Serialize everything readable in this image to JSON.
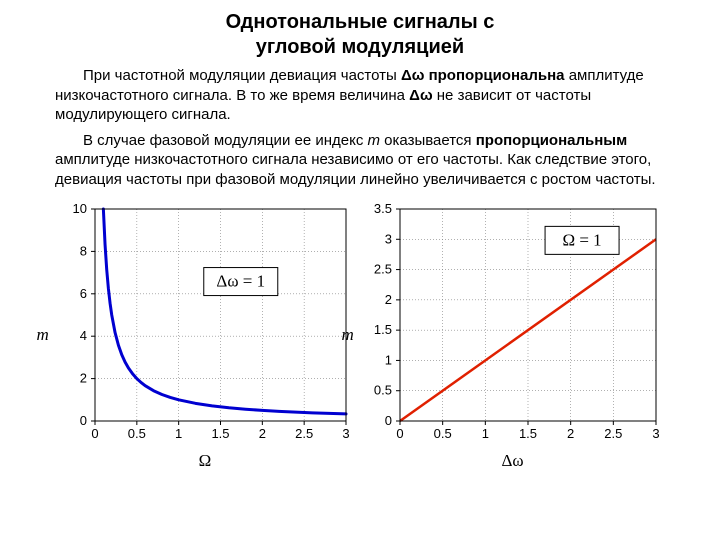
{
  "title_line1": "Однотональные сигналы с",
  "title_line2": "угловой модуляцией",
  "para1_parts": {
    "a": "При частотной модуляции девиация частоты ",
    "b": " пропорциональна",
    "c": " амплитуде низкочастотного сигнала. В то же время величина ",
    "d": " не зависит от частоты модулирующего сигнала."
  },
  "para2_parts": {
    "a": "В случае фазовой модуляции ее индекс ",
    "m": "m",
    "b": " оказывается ",
    "prop": "пропорциональным",
    "c": " амплитуде низкочастотного сигнала независимо от его частоты. Как следствие этого, девиация частоты при фазовой модуляции линейно увеличивается с ростом частоты."
  },
  "symbol_dw": "Δω",
  "chart_left": {
    "type": "line",
    "ylabel": "m",
    "xlabel": "Ω",
    "xlim": [
      0,
      3
    ],
    "ylim": [
      0,
      10
    ],
    "xticks": [
      0,
      0.5,
      1,
      1.5,
      2,
      2.5,
      3
    ],
    "yticks": [
      0,
      2,
      4,
      6,
      8,
      10
    ],
    "grid_color": "#808080",
    "border_color": "#000000",
    "background_color": "#ffffff",
    "line_color": "#0000d0",
    "line_width": 3,
    "annotation": "Δω = 1",
    "annotation_pos_xy": [
      1.3,
      6.2
    ],
    "tick_fontsize": 13,
    "curve_samples_x": [
      0.1,
      0.12,
      0.14,
      0.16,
      0.18,
      0.2,
      0.24,
      0.28,
      0.32,
      0.36,
      0.4,
      0.45,
      0.5,
      0.55,
      0.6,
      0.7,
      0.8,
      0.9,
      1.0,
      1.2,
      1.4,
      1.6,
      1.8,
      2.0,
      2.2,
      2.4,
      2.6,
      2.8,
      3.0
    ],
    "curve_formula": "1/x"
  },
  "chart_right": {
    "type": "line",
    "ylabel": "m",
    "xlabel": "Δω",
    "xlim": [
      0,
      3
    ],
    "ylim": [
      0,
      3.5
    ],
    "xticks": [
      0,
      0.5,
      1,
      1.5,
      2,
      2.5,
      3
    ],
    "yticks": [
      0,
      0.5,
      1,
      1.5,
      2,
      2.5,
      3,
      3.5
    ],
    "grid_color": "#808080",
    "border_color": "#000000",
    "background_color": "#ffffff",
    "line_color": "#e02000",
    "line_width": 2.5,
    "annotation": "Ω = 1",
    "annotation_pos_xy": [
      1.7,
      2.85
    ],
    "tick_fontsize": 13,
    "line_points": [
      [
        0,
        0
      ],
      [
        3,
        3
      ]
    ]
  }
}
